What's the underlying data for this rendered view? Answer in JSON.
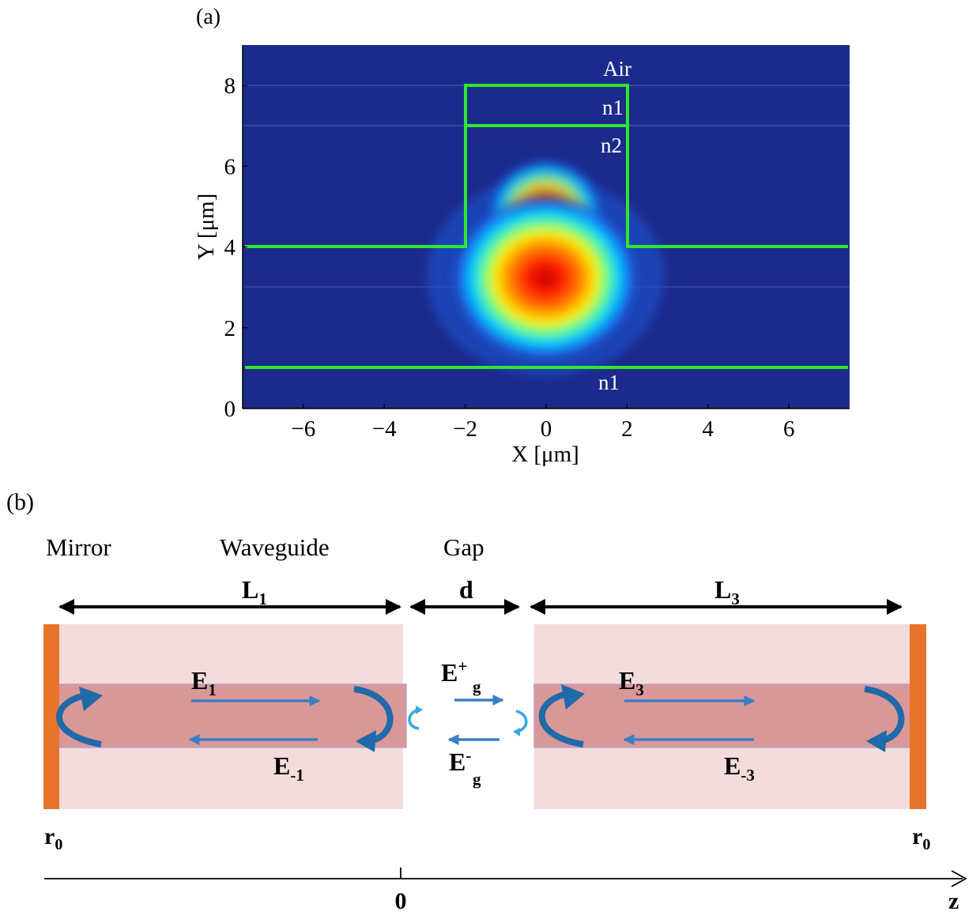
{
  "panel_a": {
    "label": "(a)",
    "xlabel": "X [μm]",
    "ylabel": "Y [μm]",
    "x_ticks": [
      "−6",
      "−4",
      "−2",
      "0",
      "2",
      "4",
      "6"
    ],
    "y_ticks": [
      "0",
      "2",
      "4",
      "6",
      "8"
    ],
    "region_labels": {
      "air": "Air",
      "n1_top": "n1",
      "n2": "n2",
      "n1_bottom": "n1"
    },
    "colors": {
      "background": "#1c2a8c",
      "outline": "#2ee82e"
    }
  },
  "chart_data": {
    "type": "heatmap",
    "xlabel": "X [μm]",
    "ylabel": "Y [μm]",
    "xlim": [
      -7.5,
      7.5
    ],
    "ylim": [
      0,
      9
    ],
    "x_ticks": [
      -6,
      -4,
      -2,
      0,
      2,
      4,
      6
    ],
    "y_ticks": [
      0,
      2,
      4,
      6,
      8
    ],
    "colormap": "jet",
    "mode_peak": {
      "x": 0,
      "y": 3.1
    },
    "waveguide_outline": [
      [
        -7.5,
        4
      ],
      [
        -2,
        4
      ],
      [
        -2,
        8
      ],
      [
        2,
        8
      ],
      [
        2,
        4
      ],
      [
        7.5,
        4
      ]
    ],
    "layer_interfaces_y": [
      7,
      1
    ],
    "layers": [
      "Air",
      "n1",
      "n2",
      "n1"
    ]
  },
  "panel_b": {
    "label": "(b)",
    "headers": {
      "mirror": "Mirror",
      "waveguide": "Waveguide",
      "gap": "Gap"
    },
    "lengths": {
      "l1": "L",
      "l1_sub": "1",
      "d": "d",
      "l3": "L",
      "l3_sub": "3"
    },
    "fields": {
      "e1": "E",
      "e1_sub": "1",
      "em1": "E",
      "em1_sub": "-1",
      "e3": "E",
      "e3_sub": "3",
      "em3": "E",
      "em3_sub": "-3",
      "egp": "E",
      "egp_sup": "+",
      "egp_sub": "g",
      "egm": "E",
      "egm_sup": "-",
      "egm_sub": "g"
    },
    "reflectors": {
      "left": "r",
      "left_sub": "0",
      "right": "r",
      "right_sub": "0"
    },
    "axis": {
      "origin": "0",
      "label": "z"
    },
    "colors": {
      "cladding": "#f4dcdc",
      "core": "#d99898",
      "mirror": "#e8742c",
      "arrow": "#3a7fc4",
      "curl": "#1f6aa8",
      "gap_curl": "#35a8e0"
    }
  }
}
